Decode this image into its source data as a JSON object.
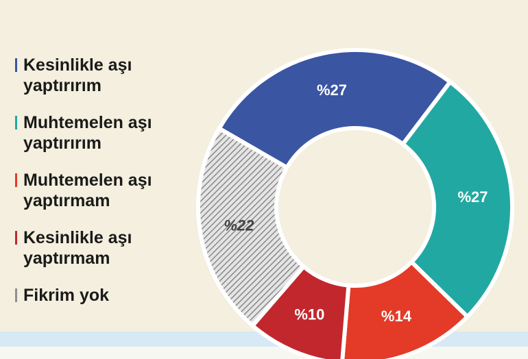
{
  "chart_data": {
    "type": "donut",
    "categories": [
      "Kesinlikle aşı yaptırırım",
      "Muhtemelen aşı yaptırırım",
      "Muhtemelen aşı yaptırmam",
      "Kesinlikle aşı yaptırmam",
      "Fikrim yok"
    ],
    "values": [
      27,
      27,
      14,
      10,
      22
    ],
    "value_labels": [
      "%27",
      "%27",
      "%14",
      "%10",
      "%22"
    ],
    "colors": [
      "#3a55a2",
      "#22a8a2",
      "#e33b27",
      "#c1272d",
      "#8f8f8f"
    ],
    "hatched": [
      false,
      false,
      false,
      false,
      true
    ]
  }
}
